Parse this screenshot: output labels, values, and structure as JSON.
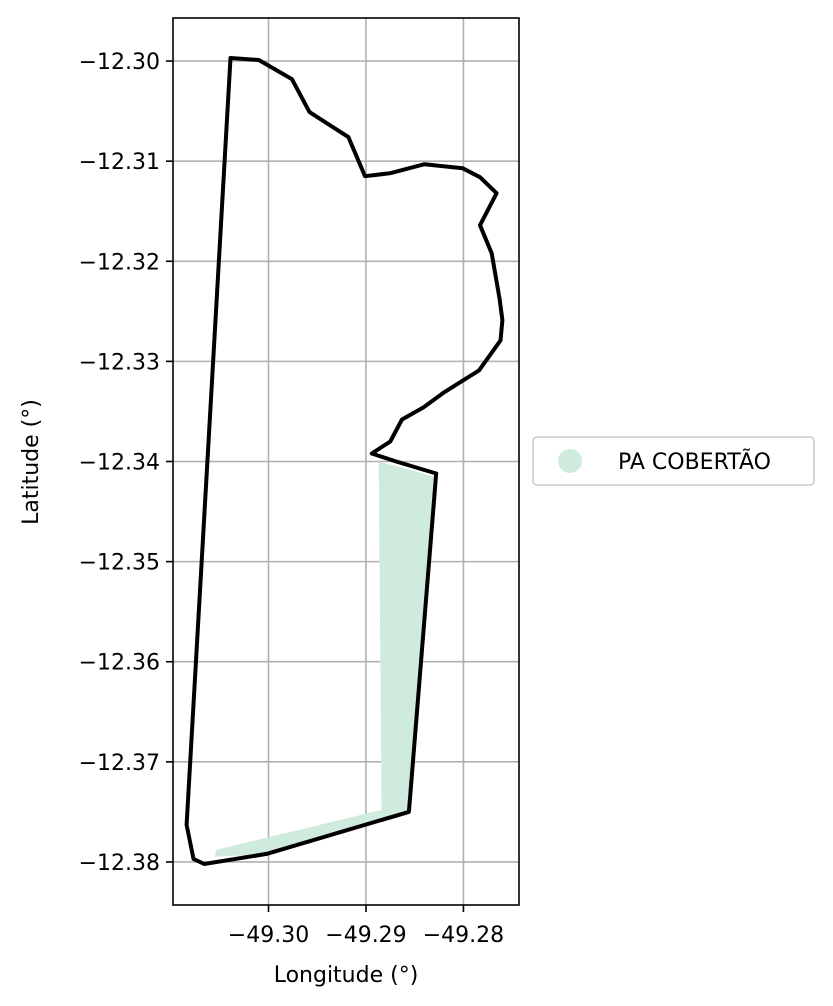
{
  "chart_data": {
    "type": "map",
    "xlabel": "Longitude (°)",
    "ylabel": "Latitude (°)",
    "xlim": [
      -49.3098,
      -49.2743
    ],
    "ylim": [
      -12.3843,
      -12.2957
    ],
    "x_ticks": [
      -49.3,
      -49.29,
      -49.28
    ],
    "x_tick_labels": [
      "−49.30",
      "−49.29",
      "−49.28"
    ],
    "y_ticks": [
      -12.3,
      -12.31,
      -12.32,
      -12.33,
      -12.34,
      -12.35,
      -12.36,
      -12.37,
      -12.38
    ],
    "y_tick_labels": [
      "−12.30",
      "−12.31",
      "−12.32",
      "−12.33",
      "−12.34",
      "−12.35",
      "−12.36",
      "−12.37",
      "−12.38"
    ],
    "grid": true,
    "legend_position": "right",
    "legend": [
      {
        "label": "PA COBERTÃO",
        "color": "#ceebdd",
        "marker": "circle"
      }
    ],
    "colors": {
      "fill": "#ceebdd",
      "outline": "#000000",
      "grid": "#b0b0b0"
    },
    "boundary": [
      [
        -49.3039,
        -12.2997
      ],
      [
        -49.301,
        -12.2999
      ],
      [
        -49.2976,
        -12.3018
      ],
      [
        -49.2958,
        -12.3051
      ],
      [
        -49.2918,
        -12.3076
      ],
      [
        -49.2901,
        -12.3115
      ],
      [
        -49.2875,
        -12.3112
      ],
      [
        -49.284,
        -12.3103
      ],
      [
        -49.2801,
        -12.3107
      ],
      [
        -49.2783,
        -12.3116
      ],
      [
        -49.2766,
        -12.3132
      ],
      [
        -49.2783,
        -12.3164
      ],
      [
        -49.2771,
        -12.3192
      ],
      [
        -49.2763,
        -12.3237
      ],
      [
        -49.276,
        -12.3259
      ],
      [
        -49.2762,
        -12.3279
      ],
      [
        -49.2784,
        -12.3309
      ],
      [
        -49.282,
        -12.3331
      ],
      [
        -49.2841,
        -12.3346
      ],
      [
        -49.2863,
        -12.3358
      ],
      [
        -49.2875,
        -12.338
      ],
      [
        -49.2894,
        -12.3392
      ],
      [
        -49.2869,
        -12.34
      ],
      [
        -49.2828,
        -12.3412
      ],
      [
        -49.2856,
        -12.375
      ],
      [
        -49.3002,
        -12.3792
      ],
      [
        -49.3066,
        -12.3802
      ],
      [
        -49.3077,
        -12.3797
      ],
      [
        -49.3084,
        -12.3763
      ],
      [
        -49.3039,
        -12.2997
      ]
    ],
    "fill_region": [
      [
        -49.2887,
        -12.34
      ],
      [
        -49.283,
        -12.3415
      ],
      [
        -49.2856,
        -12.375
      ],
      [
        -49.3002,
        -12.3792
      ],
      [
        -49.3055,
        -12.3795
      ],
      [
        -49.3054,
        -12.3788
      ],
      [
        -49.2884,
        -12.3748
      ],
      [
        -49.2887,
        -12.34
      ]
    ]
  }
}
